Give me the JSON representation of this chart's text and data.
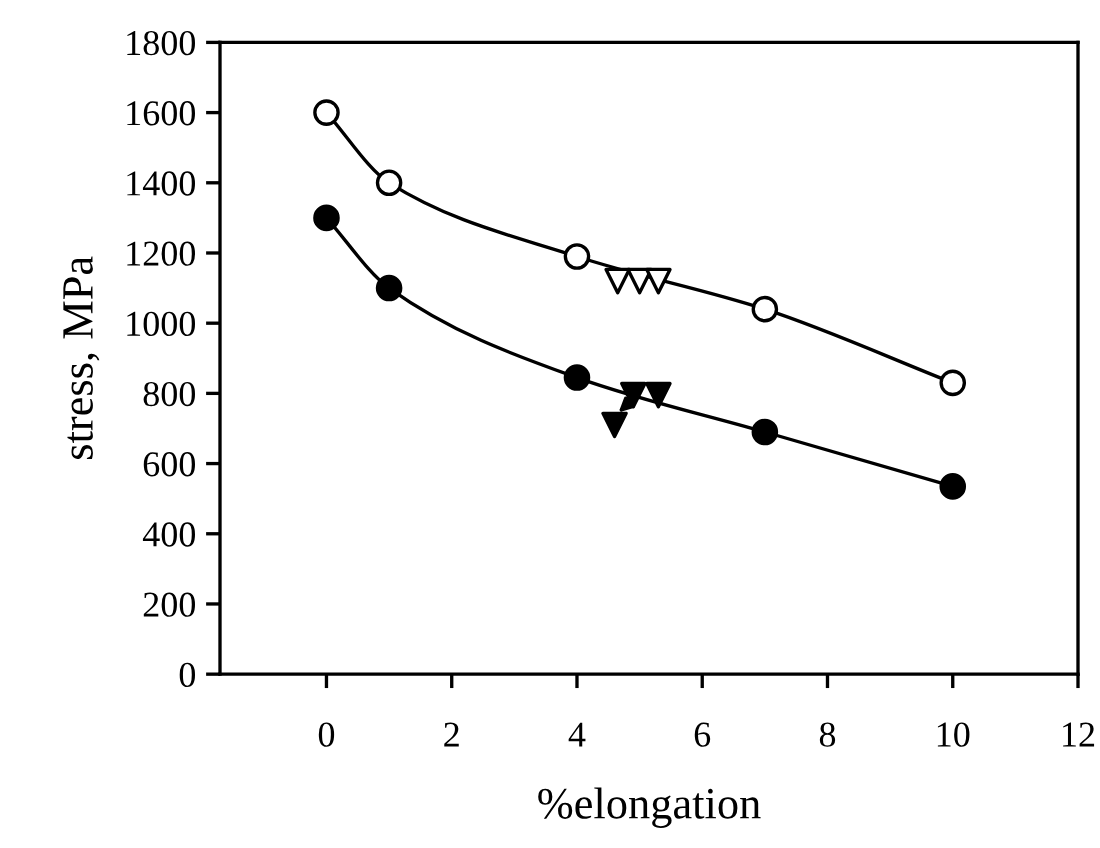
{
  "chart_data": {
    "type": "line",
    "xlabel": "%elongation",
    "ylabel": "stress, MPa",
    "xlim": [
      -1.7,
      12
    ],
    "xticks": [
      0,
      2,
      4,
      6,
      8,
      10,
      12
    ],
    "ylim": [
      0,
      1800
    ],
    "yticks": [
      0,
      200,
      400,
      600,
      800,
      1000,
      1200,
      1400,
      1600,
      1800
    ],
    "grid": false,
    "series": [
      {
        "marker": "circle",
        "color": "#ffffff",
        "x": [
          0,
          1,
          4,
          7,
          10
        ],
        "values": [
          1600,
          1400,
          1190,
          1040,
          830
        ]
      },
      {
        "marker": "circle",
        "color": "#000000",
        "x": [
          0,
          1,
          4,
          7,
          10
        ],
        "values": [
          1300,
          1100,
          845,
          690,
          535
        ]
      },
      {
        "type": "scatter",
        "marker": "triangle",
        "color": "#ffffff",
        "x": [
          4.65,
          5.0,
          5.3
        ],
        "values": [
          1120,
          1120,
          1120
        ]
      },
      {
        "type": "scatter",
        "marker": "triangle",
        "color": "#000000",
        "x": [
          4.6,
          4.9,
          5.3
        ],
        "values": [
          710,
          795,
          795
        ]
      }
    ]
  }
}
